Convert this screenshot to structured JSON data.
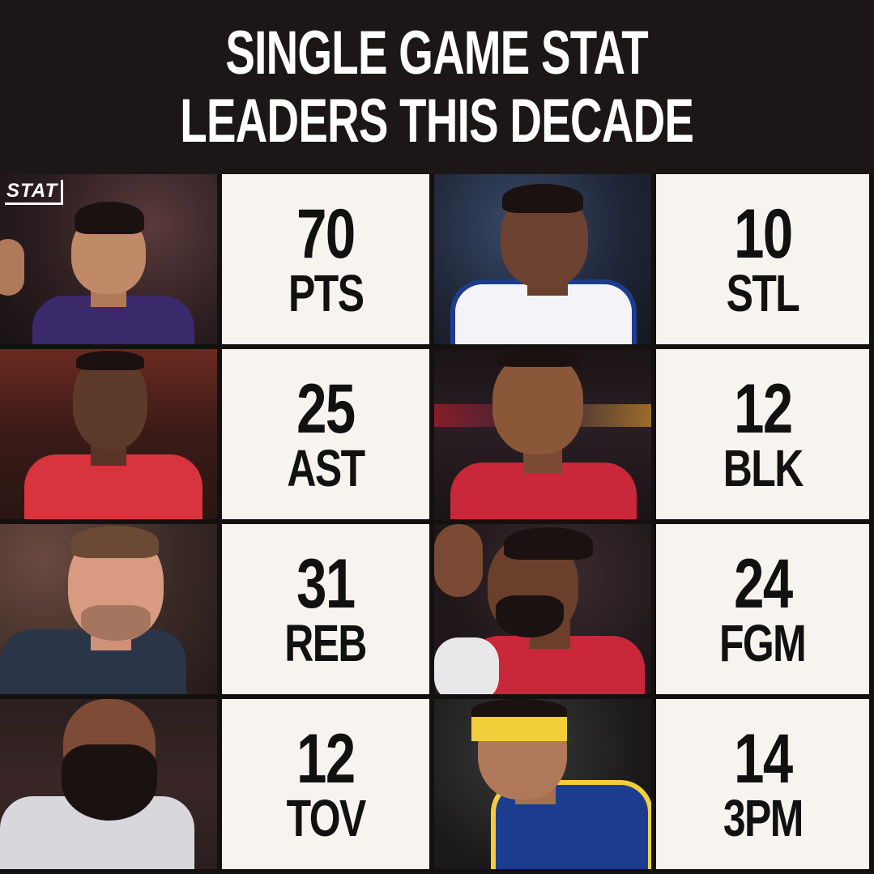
{
  "header": {
    "line1": "SINGLE GAME STAT",
    "line2": "LEADERS THIS DECADE"
  },
  "logo": "STAT",
  "rows": [
    {
      "left": {
        "value": "70",
        "stat": "PTS"
      },
      "right": {
        "value": "10",
        "stat": "STL"
      }
    },
    {
      "left": {
        "value": "25",
        "stat": "AST"
      },
      "right": {
        "value": "12",
        "stat": "BLK"
      }
    },
    {
      "left": {
        "value": "31",
        "stat": "REB"
      },
      "right": {
        "value": "24",
        "stat": "FGM"
      }
    },
    {
      "left": {
        "value": "12",
        "stat": "TOV"
      },
      "right": {
        "value": "14",
        "stat": "3PM"
      }
    }
  ]
}
